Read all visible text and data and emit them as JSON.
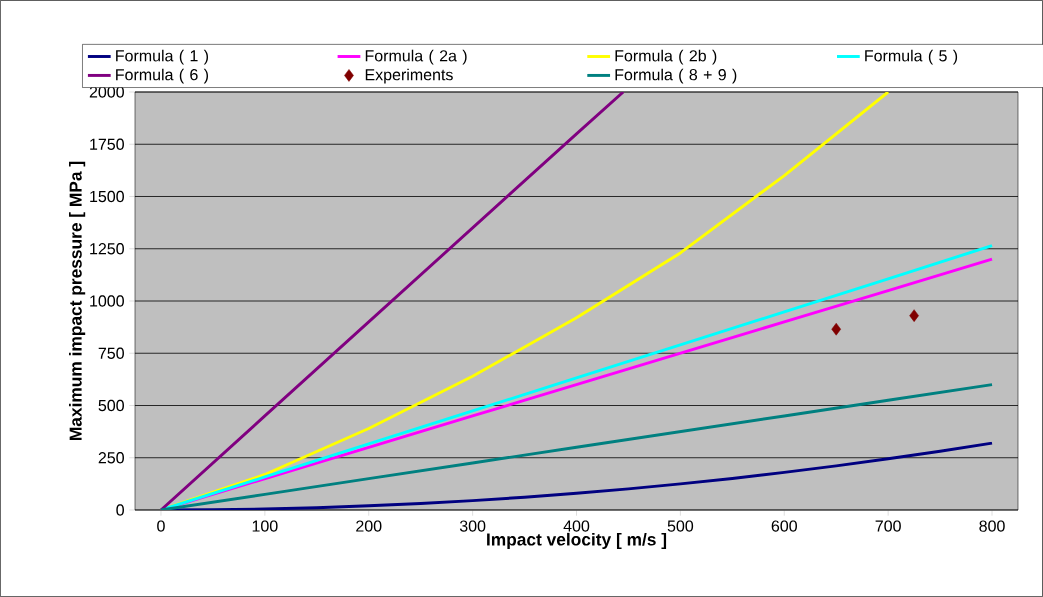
{
  "chart_data": {
    "type": "line",
    "xlabel": "Impact velocity [ m/s ]",
    "ylabel": "Maximum impact pressure [ MPa ]",
    "xlim": [
      -25,
      825
    ],
    "ylim": [
      0,
      2000
    ],
    "xticks": [
      0,
      100,
      200,
      300,
      400,
      500,
      600,
      700,
      800
    ],
    "yticks": [
      0,
      250,
      500,
      750,
      1000,
      1250,
      1500,
      1750,
      2000
    ],
    "grid": "y",
    "legend": "top",
    "series": [
      {
        "name": "Formula ( 1 )",
        "color": "#000080",
        "x": [
          0,
          50,
          100,
          150,
          200,
          250,
          300,
          350,
          400,
          450,
          500,
          550,
          600,
          650,
          700,
          750,
          800
        ],
        "values": [
          0,
          1,
          5,
          11,
          20,
          31,
          45,
          61,
          80,
          101,
          125,
          151,
          180,
          211,
          245,
          281,
          320
        ]
      },
      {
        "name": "Formula ( 2a )",
        "color": "#ff00ff",
        "x": [
          0,
          100,
          200,
          300,
          400,
          500,
          600,
          700,
          800
        ],
        "values": [
          0,
          150,
          300,
          450,
          600,
          750,
          900,
          1050,
          1200
        ]
      },
      {
        "name": "Formula ( 2b )",
        "color": "#ffff00",
        "x": [
          0,
          100,
          200,
          300,
          400,
          500,
          600,
          700
        ],
        "values": [
          0,
          170,
          390,
          640,
          920,
          1230,
          1600,
          2000
        ]
      },
      {
        "name": "Formula ( 5 )",
        "color": "#00ffff",
        "x": [
          0,
          100,
          200,
          300,
          400,
          500,
          600,
          700,
          800
        ],
        "values": [
          0,
          158,
          316,
          474,
          632,
          790,
          948,
          1106,
          1265
        ]
      },
      {
        "name": "Formula ( 6 )",
        "color": "#800080",
        "x": [
          0,
          100,
          200,
          300,
          400,
          445
        ],
        "values": [
          0,
          450,
          900,
          1350,
          1800,
          2000
        ]
      },
      {
        "name": "Experiments",
        "type": "scatter",
        "marker": "diamond",
        "color": "#800000",
        "x": [
          650,
          725
        ],
        "values": [
          865,
          930
        ]
      },
      {
        "name": "Formula ( 8 + 9 )",
        "color": "#008080",
        "x": [
          0,
          100,
          200,
          300,
          400,
          500,
          600,
          700,
          800
        ],
        "values": [
          0,
          75,
          150,
          225,
          300,
          375,
          450,
          525,
          600
        ]
      }
    ]
  }
}
